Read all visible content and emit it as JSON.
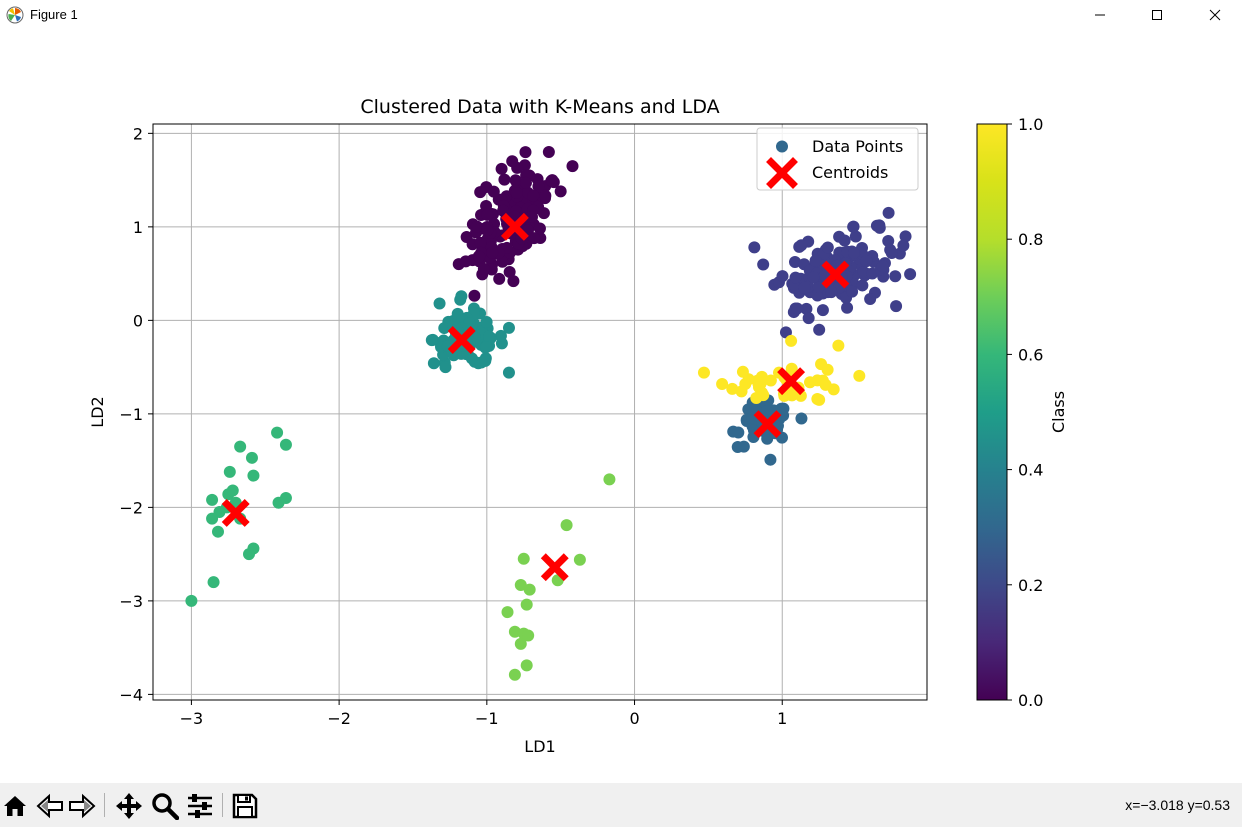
{
  "window": {
    "title": "Figure 1",
    "minimize_icon": "minimize-icon",
    "maximize_icon": "maximize-icon",
    "close_icon": "close-icon"
  },
  "toolbar": {
    "icons": [
      "home-icon",
      "back-icon",
      "forward-icon",
      "pan-icon",
      "zoom-icon",
      "configure-subplots-icon",
      "save-icon"
    ],
    "coords": "x=−3.018 y=0.53"
  },
  "chart_data": {
    "type": "scatter",
    "title": "Clustered Data with K-Means and LDA",
    "xlabel": "LD1",
    "ylabel": "LD2",
    "xlim": [
      -3.26,
      1.98
    ],
    "ylim": [
      -4.06,
      2.1
    ],
    "xticks": [
      -3,
      -2,
      -1,
      0,
      1
    ],
    "xtick_labels": [
      "−3",
      "−2",
      "−1",
      "0",
      "1"
    ],
    "yticks": [
      -4,
      -3,
      -2,
      -1,
      0,
      1,
      2
    ],
    "ytick_labels": [
      "−4",
      "−3",
      "−2",
      "−1",
      "0",
      "1",
      "2"
    ],
    "grid": true,
    "legend": {
      "placement": "upper right",
      "entries": [
        "Data Points",
        "Centroids"
      ]
    },
    "colorbar": {
      "label": "Class",
      "range": [
        0,
        1
      ],
      "ticks": [
        "0.0",
        "0.2",
        "0.4",
        "0.6",
        "0.8",
        "1.0"
      ],
      "colormap": "viridis"
    },
    "colors": {
      "class_0": "#440154",
      "class_1": "#3f3f8a",
      "class_2": "#21918c",
      "class_3": "#31688e",
      "class_4": "#35b779",
      "class_5": "#7ad151",
      "class_6": "#fde725",
      "centroid": "#ff0000"
    },
    "clusters": [
      {
        "class": 0.0,
        "color": "#440154",
        "center": [
          -0.85,
          1.05
        ],
        "spread": [
          0.12,
          0.3
        ],
        "count": 150,
        "extra_points": [
          [
            -0.9,
            1.62
          ],
          [
            -0.58,
            1.8
          ],
          [
            -0.42,
            1.65
          ],
          [
            -0.5,
            1.38
          ],
          [
            -1.02,
            0.55
          ],
          [
            -0.68,
            0.88
          ],
          [
            -0.82,
            0.42
          ]
        ]
      },
      {
        "class": 0.167,
        "color": "#3f3f8a",
        "center": [
          1.38,
          0.55
        ],
        "spread": [
          0.18,
          0.2
        ],
        "count": 140,
        "extra_points": [
          [
            1.72,
            1.15
          ],
          [
            1.82,
            0.8
          ],
          [
            1.15,
            0.35
          ],
          [
            1.48,
            1.0
          ],
          [
            1.25,
            -0.1
          ]
        ]
      },
      {
        "class": 0.5,
        "color": "#21918c",
        "center": [
          -1.12,
          -0.2
        ],
        "spread": [
          0.12,
          0.14
        ],
        "count": 90,
        "extra_points": [
          [
            -1.32,
            0.18
          ],
          [
            -1.18,
            0.22
          ],
          [
            -0.85,
            -0.08
          ],
          [
            -1.28,
            -0.5
          ]
        ]
      },
      {
        "class": 0.333,
        "color": "#31688e",
        "center": [
          0.88,
          -1.1
        ],
        "spread": [
          0.08,
          0.1
        ],
        "count": 70,
        "extra_points": [
          [
            0.74,
            -1.35
          ],
          [
            0.92,
            -1.49
          ],
          [
            1.13,
            -1.05
          ],
          [
            0.8,
            -0.88
          ]
        ]
      },
      {
        "class": 1.0,
        "color": "#fde725",
        "center": [
          1.04,
          -0.66
        ],
        "spread": [
          0.2,
          0.1
        ],
        "count": 40,
        "extra_points": [
          [
            1.06,
            -0.22
          ],
          [
            1.38,
            -0.27
          ],
          [
            0.75,
            -0.68
          ],
          [
            1.25,
            -0.85
          ]
        ]
      },
      {
        "class": 0.667,
        "color": "#35b779",
        "center": [
          -2.6,
          -1.85
        ],
        "spread": [
          0.12,
          0.3
        ],
        "count": 0,
        "extra_points": [
          [
            -3.0,
            -3.0
          ],
          [
            -2.85,
            -2.8
          ],
          [
            -2.42,
            -1.2
          ],
          [
            -2.36,
            -1.33
          ],
          [
            -2.67,
            -1.35
          ],
          [
            -2.59,
            -1.47
          ],
          [
            -2.74,
            -1.62
          ],
          [
            -2.58,
            -1.66
          ],
          [
            -2.75,
            -1.86
          ],
          [
            -2.72,
            -1.82
          ],
          [
            -2.86,
            -1.92
          ],
          [
            -2.81,
            -2.05
          ],
          [
            -2.86,
            -2.12
          ],
          [
            -2.82,
            -2.26
          ],
          [
            -2.41,
            -1.95
          ],
          [
            -2.36,
            -1.9
          ],
          [
            -2.58,
            -2.44
          ],
          [
            -2.61,
            -2.5
          ],
          [
            -2.76,
            -2.0
          ],
          [
            -2.67,
            -2.12
          ],
          [
            -2.7,
            -1.95
          ]
        ]
      },
      {
        "class": 0.833,
        "color": "#7ad151",
        "center": [
          -0.55,
          -2.9
        ],
        "spread": [
          0.1,
          0.4
        ],
        "count": 0,
        "extra_points": [
          [
            -0.17,
            -1.7
          ],
          [
            -0.46,
            -2.19
          ],
          [
            -0.37,
            -2.56
          ],
          [
            -0.75,
            -2.55
          ],
          [
            -0.52,
            -2.78
          ],
          [
            -0.77,
            -2.83
          ],
          [
            -0.71,
            -2.88
          ],
          [
            -0.73,
            -3.04
          ],
          [
            -0.86,
            -3.12
          ],
          [
            -0.81,
            -3.33
          ],
          [
            -0.75,
            -3.35
          ],
          [
            -0.72,
            -3.37
          ],
          [
            -0.77,
            -3.46
          ],
          [
            -0.73,
            -3.69
          ],
          [
            -0.81,
            -3.79
          ]
        ]
      }
    ],
    "centroids": [
      [
        -0.81,
        1.0
      ],
      [
        1.36,
        0.49
      ],
      [
        -1.17,
        -0.21
      ],
      [
        0.9,
        -1.11
      ],
      [
        1.06,
        -0.65
      ],
      [
        -2.7,
        -2.06
      ],
      [
        -0.54,
        -2.64
      ]
    ]
  }
}
